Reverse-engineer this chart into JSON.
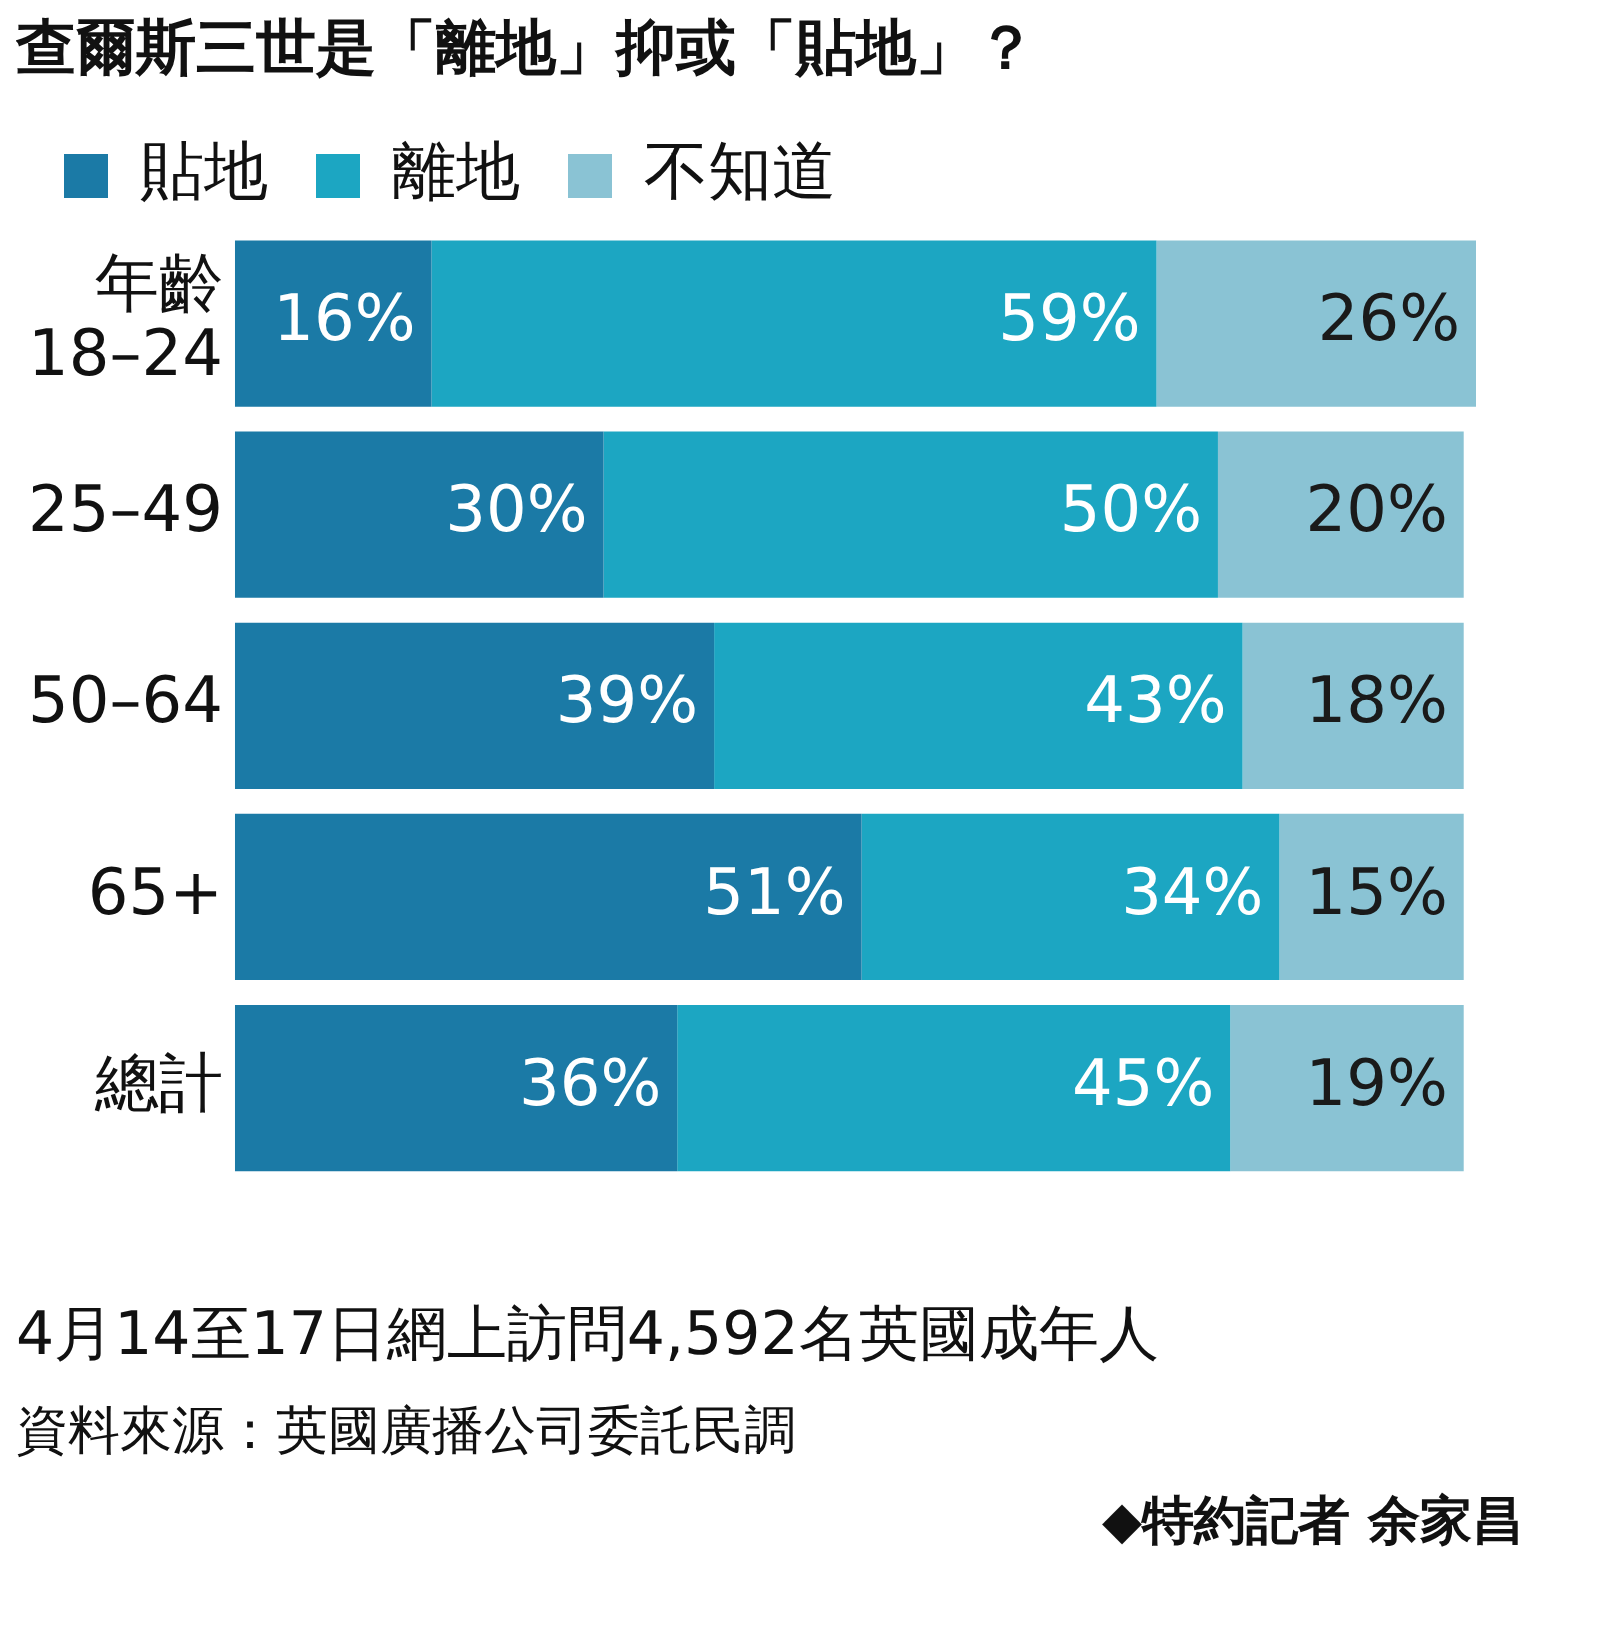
{
  "chart_data": {
    "type": "bar",
    "orientation": "horizontal",
    "stacked": true,
    "title": "查爾斯三世是「離地」抑或「貼地」？",
    "categories": [
      "年齡 18–24",
      "25–49",
      "50–64",
      "65+",
      "總計"
    ],
    "series": [
      {
        "name": "貼地",
        "color": "#1b7aa6",
        "values": [
          16,
          30,
          39,
          51,
          36
        ],
        "value_labels": [
          "16%",
          "30%",
          "39%",
          "51%",
          "36%"
        ]
      },
      {
        "name": "離地",
        "color": "#1ca6c2",
        "values": [
          59,
          50,
          43,
          34,
          45
        ],
        "value_labels": [
          "59%",
          "50%",
          "43%",
          "34%",
          "45%"
        ]
      },
      {
        "name": "不知道",
        "color": "#8ac3d4",
        "values": [
          26,
          20,
          18,
          15,
          19
        ],
        "value_labels": [
          "26%",
          "20%",
          "18%",
          "15%",
          "19%"
        ]
      }
    ],
    "legend": "top left",
    "annotations": [
      "4月14至17日網上訪問4,592名英國成年人",
      "資料來源：英國廣播公司委託民調",
      "◆特約記者 余家昌"
    ]
  }
}
